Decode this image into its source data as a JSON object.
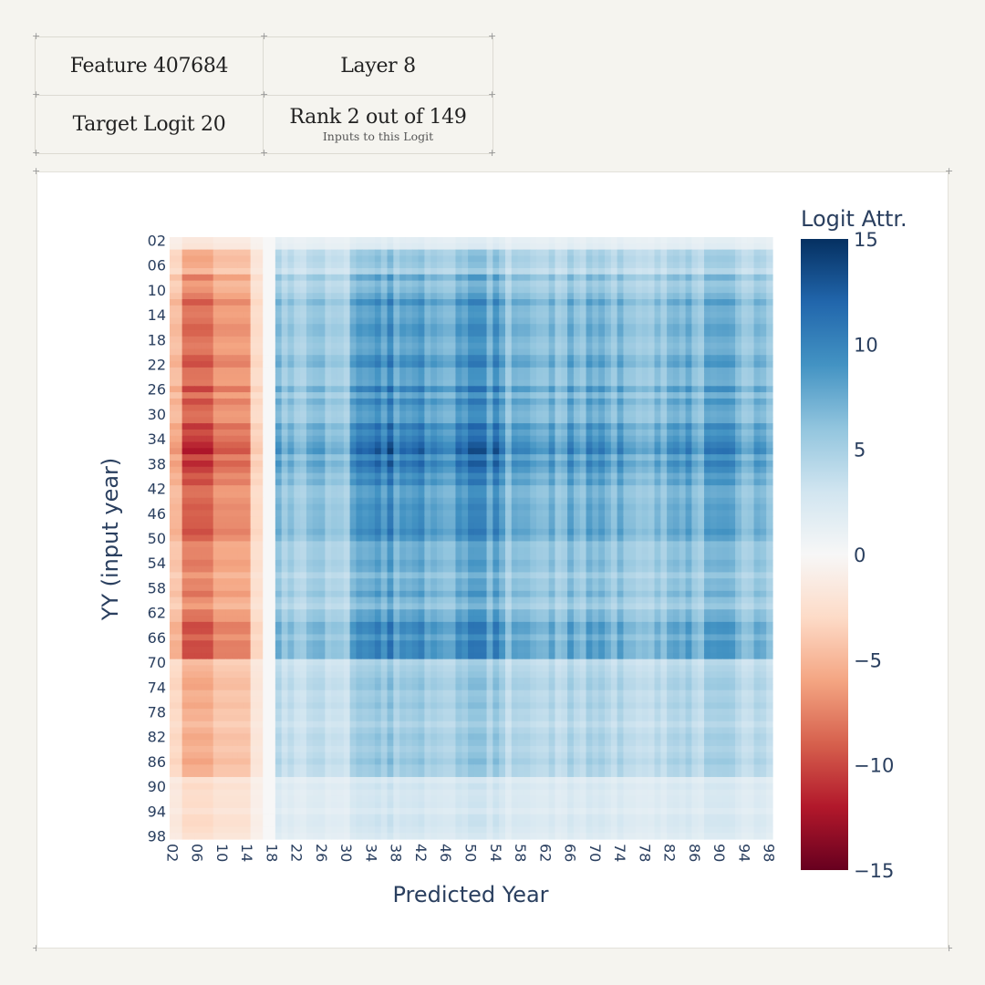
{
  "info": {
    "feature": "Feature 407684",
    "layer": "Layer 8",
    "target_logit": "Target Logit 20",
    "rank": "Rank 2 out of 149",
    "rank_sub": "Inputs to this Logit"
  },
  "colors": {
    "page_bg": "#f5f4ef",
    "negative": "#67001f",
    "neutral": "#f7f7f7",
    "positive": "#053061",
    "axis_text": "#2a3f5f"
  },
  "chart_data": {
    "type": "heatmap",
    "title": "",
    "xlabel": "Predicted Year",
    "ylabel": "YY (input year)",
    "colorbar_title": "Logit Attr.",
    "colorscale": "RdBu",
    "zlim": [
      -15,
      15
    ],
    "colorbar_ticks": [
      {
        "value": 15,
        "label": "15"
      },
      {
        "value": 10,
        "label": "10"
      },
      {
        "value": 5,
        "label": "5"
      },
      {
        "value": 0,
        "label": "0"
      },
      {
        "value": -5,
        "label": "−5"
      },
      {
        "value": -10,
        "label": "−10"
      },
      {
        "value": -15,
        "label": "−15"
      }
    ],
    "x_range": [
      2,
      98
    ],
    "y_range": [
      2,
      98
    ],
    "x_ticks": [
      "02",
      "06",
      "10",
      "14",
      "18",
      "22",
      "26",
      "30",
      "34",
      "38",
      "42",
      "46",
      "50",
      "54",
      "58",
      "62",
      "66",
      "70",
      "74",
      "78",
      "82",
      "86",
      "90",
      "94",
      "98"
    ],
    "y_ticks": [
      "02",
      "06",
      "10",
      "14",
      "18",
      "22",
      "26",
      "30",
      "34",
      "38",
      "42",
      "46",
      "50",
      "54",
      "58",
      "62",
      "66",
      "70",
      "74",
      "78",
      "82",
      "86",
      "90",
      "94",
      "98"
    ],
    "x_column_profile": [
      {
        "from": 2,
        "to": 3,
        "value": -5
      },
      {
        "from": 4,
        "to": 8,
        "value": -9
      },
      {
        "from": 9,
        "to": 14,
        "value": -7
      },
      {
        "from": 15,
        "to": 16,
        "value": -3
      },
      {
        "from": 17,
        "to": 18,
        "value": 0
      },
      {
        "from": 19,
        "to": 30,
        "value": 6
      },
      {
        "from": 31,
        "to": 54,
        "value": 9
      },
      {
        "from": 55,
        "to": 98,
        "value": 7
      }
    ],
    "y_row_profile": [
      {
        "from": 2,
        "to": 3,
        "value": 0.2
      },
      {
        "from": 4,
        "to": 7,
        "value": 0.6
      },
      {
        "from": 8,
        "to": 11,
        "value": 0.8
      },
      {
        "from": 12,
        "to": 29,
        "value": 1.0
      },
      {
        "from": 30,
        "to": 31,
        "value": 0.85
      },
      {
        "from": 32,
        "to": 39,
        "value": 1.2
      },
      {
        "from": 40,
        "to": 50,
        "value": 1.05
      },
      {
        "from": 51,
        "to": 63,
        "value": 0.8
      },
      {
        "from": 64,
        "to": 69,
        "value": 1.0
      },
      {
        "from": 70,
        "to": 88,
        "value": 0.6
      },
      {
        "from": 89,
        "to": 98,
        "value": 0.3
      }
    ]
  }
}
